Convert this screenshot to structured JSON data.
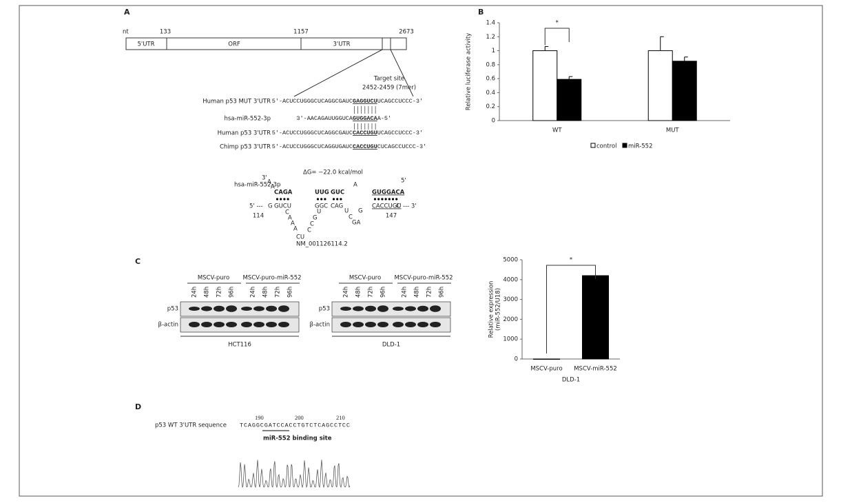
{
  "panel_a": {
    "label": "A",
    "unit": "nt",
    "positions": [
      133,
      1157,
      2673
    ],
    "regions": [
      "5'UTR",
      "ORF",
      "3'UTR"
    ],
    "target_site": [
      "Target site",
      "2452-2459 (7mer)"
    ],
    "alignment": [
      {
        "label": "Human p53 MUT 3'UTR",
        "before": "5'-ACUCCUGGGCUCAGGCGAUC",
        "motif": "GAGGUCU",
        "after": "UCAGCCUCCC-3'"
      },
      {
        "label": "hsa-miR-552-3p",
        "before": "3'-AACAGAUUGGUCA",
        "motif": "GUGGACA",
        "after": "A-5'"
      },
      {
        "label": "Human p53 3'UTR",
        "before": "5'-ACUCCUGGGCUCAGGCGAUC",
        "motif": "CACCUGU",
        "after": "UCAGCCUCCC-3'"
      },
      {
        "label": "Chimp p53 3'UTR",
        "before": "5'-ACUCCUGGGCUCAGGUGAUC",
        "motif": "CACCUGU",
        "after": "CUCAGCCUCCC-3'"
      }
    ],
    "structure": {
      "mirna": "hsa-miR-552-3p",
      "dg": "ΔG= −22.0 kcal/mol",
      "accession": "NM_001126114.2",
      "start": 114,
      "end": 147,
      "letters": [
        "3'",
        "A",
        "A",
        "CAGA",
        "UUG",
        "GUC",
        "A",
        "GUGGACA",
        "5'",
        "5' ---",
        "G",
        "GUCU",
        "GGC",
        "CAG",
        "CACCUGU",
        "C",
        "--- 3'",
        "C",
        "A",
        "A",
        "A",
        "CU",
        "C",
        "C",
        "G",
        "U",
        "U",
        "C",
        "G",
        "GA"
      ]
    }
  },
  "panel_b": {
    "label": "B"
  },
  "panel_c": {
    "label": "C",
    "groups": [
      "MSCV-puro",
      "MSCV-puro-miR-552"
    ],
    "lanes": [
      "24h",
      "48h",
      "72h",
      "96h"
    ],
    "rows": [
      "p53",
      "β-actin"
    ],
    "cells": [
      "HCT116",
      "DLD-1"
    ]
  },
  "panel_d": {
    "label": "D",
    "title": "p53 WT 3'UTR sequence",
    "positions": [
      190,
      200,
      210
    ],
    "sequence": "TCAGGCGATCCACCTGTCTCAGCCTCC",
    "site": "miR-552 binding site"
  },
  "chart_data": [
    {
      "type": "bar",
      "y_label": [
        "Relative luciferase activity"
      ],
      "categories": [
        "WT",
        "MUT"
      ],
      "series": [
        {
          "name": "control",
          "color": "#ffffff",
          "values": [
            1,
            1
          ],
          "errors": [
            0.06,
            0.2
          ]
        },
        {
          "name": "miR-552",
          "color": "#000000",
          "values": [
            0.59,
            0.85
          ],
          "errors": [
            0.04,
            0.06
          ]
        }
      ],
      "ylim": [
        0,
        1.4
      ],
      "yticks": [
        0,
        0.2,
        0.4,
        0.6,
        0.8,
        1,
        1.2,
        1.4
      ],
      "annotation": "*",
      "legend": "bottom"
    },
    {
      "type": "bar",
      "y_label": [
        "Relative expression",
        "(miR-552/U18)"
      ],
      "x_label": "DLD-1",
      "categories": [
        "MSCV-puro",
        "MSCV-miR-552"
      ],
      "series": [
        {
          "color": "#000000",
          "values": [
            1,
            4200
          ]
        }
      ],
      "ylim": [
        0,
        5000
      ],
      "yticks": [
        0,
        1000,
        2000,
        3000,
        4000,
        5000
      ],
      "annotation": "*"
    }
  ]
}
